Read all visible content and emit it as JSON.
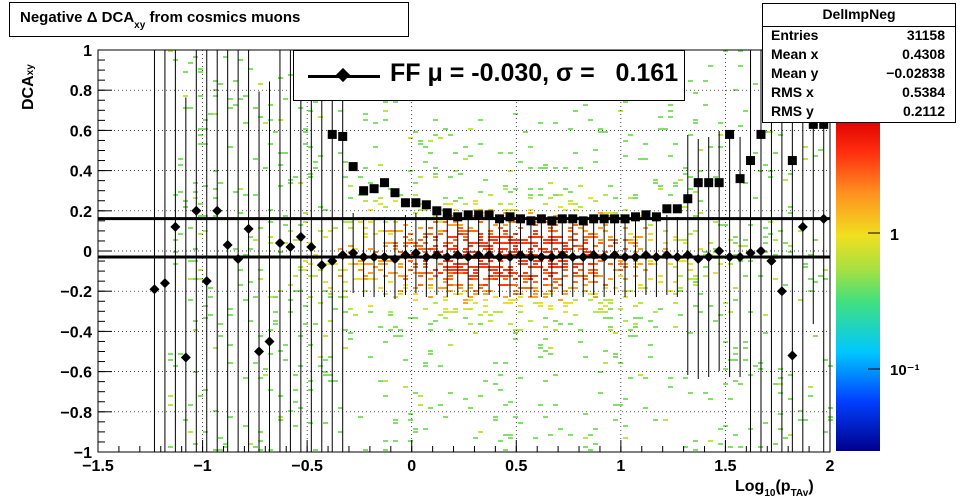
{
  "title": {
    "main_pre": "Negative ",
    "delta": "Δ",
    "main_mid": " DCA",
    "sub": "xy",
    "main_post": "from cosmics muons"
  },
  "stats": {
    "name": "DelImpNeg",
    "rows": [
      {
        "key": "Entries",
        "value": "31158"
      },
      {
        "key": "Mean x",
        "value": "0.4308"
      },
      {
        "key": "Mean y",
        "value": "−0.02838"
      },
      {
        "key": "RMS x",
        "value": "0.5384"
      },
      {
        "key": "RMS y",
        "value": "0.2112"
      }
    ]
  },
  "legend": {
    "text": "FF μ = -0.030, σ =   0.161"
  },
  "axes": {
    "y_title": "DCA",
    "y_title_sub": "xy",
    "x_title_pre": "Log",
    "x_title_sub": "10",
    "x_title_mid": "(p",
    "x_title_sub2": "TAv",
    "x_title_post": ")",
    "x_ticks": [
      "−1.5",
      "−1",
      "−0.5",
      "0",
      "0.5",
      "1",
      "1.5",
      "2"
    ],
    "y_ticks": [
      "−1",
      "−0.8",
      "−0.6",
      "−0.4",
      "−0.2",
      "0",
      "0.2",
      "0.4",
      "0.6",
      "0.8",
      "1"
    ],
    "z_ticks": [
      "1",
      "10⁻¹"
    ]
  },
  "chart_data": {
    "type": "scatter",
    "title": "Negative Δ DCAxy from cosmics muons",
    "xlabel": "Log10(pTAv)",
    "ylabel": "DCAxy",
    "xlim": [
      -1.5,
      2
    ],
    "ylim": [
      -1,
      1
    ],
    "grid": true,
    "colz_scale": "log",
    "histogram_name": "DelImpNeg",
    "fit_lines": {
      "mean": -0.03,
      "sigma": 0.161
    },
    "series": [
      {
        "name": "FF",
        "marker": "diamond",
        "x": [
          -1.23,
          -1.18,
          -1.13,
          -1.08,
          -1.03,
          -0.98,
          -0.93,
          -0.88,
          -0.83,
          -0.78,
          -0.73,
          -0.68,
          -0.63,
          -0.58,
          -0.53,
          -0.48,
          -0.43,
          -0.38,
          -0.33,
          -0.28,
          -0.23,
          -0.18,
          -0.13,
          -0.08,
          -0.03,
          0.02,
          0.07,
          0.12,
          0.17,
          0.22,
          0.27,
          0.32,
          0.37,
          0.42,
          0.47,
          0.52,
          0.57,
          0.62,
          0.67,
          0.72,
          0.77,
          0.82,
          0.87,
          0.92,
          0.97,
          1.02,
          1.07,
          1.12,
          1.17,
          1.22,
          1.27,
          1.32,
          1.37,
          1.42,
          1.47,
          1.52,
          1.57,
          1.62,
          1.67,
          1.72,
          1.77,
          1.82,
          1.87,
          1.92,
          1.97
        ],
        "y": [
          -0.19,
          -0.16,
          0.12,
          -0.53,
          0.2,
          -0.15,
          0.2,
          0.03,
          -0.04,
          0.11,
          -0.5,
          -0.45,
          0.04,
          0.02,
          0.07,
          0.02,
          -0.07,
          -0.05,
          -0.02,
          -0.01,
          -0.03,
          -0.03,
          -0.03,
          -0.04,
          -0.02,
          -0.01,
          -0.03,
          -0.02,
          -0.03,
          -0.02,
          -0.03,
          -0.02,
          -0.02,
          -0.03,
          -0.03,
          -0.02,
          -0.03,
          -0.03,
          -0.03,
          -0.02,
          -0.03,
          -0.03,
          -0.02,
          -0.03,
          -0.02,
          -0.03,
          -0.03,
          -0.02,
          -0.03,
          -0.02,
          -0.03,
          -0.02,
          -0.04,
          -0.03,
          0.0,
          -0.03,
          -0.03,
          -0.01,
          0.0,
          -0.05,
          -0.2,
          -0.52,
          0.12,
          0.93,
          0.16
        ]
      },
      {
        "name": "sigma",
        "marker": "square",
        "x": [
          -0.38,
          -0.33,
          -0.28,
          -0.23,
          -0.18,
          -0.13,
          -0.08,
          -0.03,
          0.02,
          0.07,
          0.12,
          0.17,
          0.22,
          0.27,
          0.32,
          0.37,
          0.42,
          0.47,
          0.52,
          0.57,
          0.62,
          0.67,
          0.72,
          0.77,
          0.82,
          0.87,
          0.92,
          0.97,
          1.02,
          1.07,
          1.12,
          1.17,
          1.22,
          1.27,
          1.32,
          1.37,
          1.42,
          1.47,
          1.52,
          1.57,
          1.62,
          1.67,
          1.72,
          1.77,
          1.82,
          1.87,
          1.92,
          1.97
        ],
        "y": [
          0.58,
          0.57,
          0.42,
          0.3,
          0.31,
          0.34,
          0.29,
          0.24,
          0.24,
          0.23,
          0.2,
          0.19,
          0.17,
          0.18,
          0.18,
          0.18,
          0.16,
          0.17,
          0.16,
          0.15,
          0.16,
          0.15,
          0.16,
          0.16,
          0.15,
          0.16,
          0.16,
          0.16,
          0.16,
          0.17,
          0.18,
          0.17,
          0.21,
          0.21,
          0.26,
          0.34,
          0.34,
          0.34,
          0.58,
          0.36,
          0.45,
          0.58,
          0.82,
          0.87,
          0.45,
          0.87,
          0.63,
          0.63
        ]
      }
    ]
  }
}
